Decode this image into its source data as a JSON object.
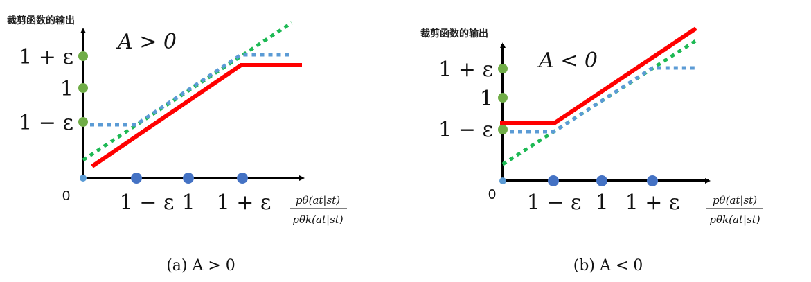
{
  "panels": [
    {
      "y_axis_title": "裁剪函数的输出",
      "condition": "A > 0",
      "y_ticks": [
        "1 + ε",
        "1",
        "1 − ε"
      ],
      "origin": "0",
      "x_ticks": [
        "1 − ε",
        "1",
        "1 + ε"
      ],
      "x_axis_label_num": "pθ(at|st)",
      "x_axis_label_den": "pθk(at|st)",
      "caption": "(a) A > 0"
    },
    {
      "y_axis_title": "裁剪函数的输出",
      "condition": "A < 0",
      "y_ticks": [
        "1 + ε",
        "1",
        "1 − ε"
      ],
      "origin": "0",
      "x_ticks": [
        "1 − ε",
        "1",
        "1 + ε"
      ],
      "x_axis_label_num": "pθ(at|st)",
      "x_axis_label_den": "pθk(at|st)",
      "caption": "(b) A < 0"
    }
  ],
  "colors": {
    "red_line": "#ff0000",
    "green_dotted": "#1db954",
    "blue_dotted": "#5b9bd5",
    "y_dots": "#70ad47",
    "x_dots": "#4472c4"
  }
}
